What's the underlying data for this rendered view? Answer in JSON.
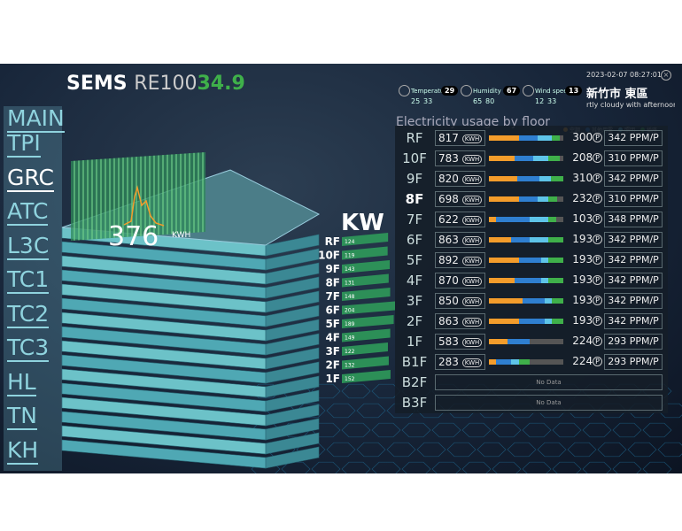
{
  "header": {
    "brand": "SEMS",
    "metric_label": "RE100",
    "metric_value": "34.9"
  },
  "weather": [
    {
      "label": "Temperature",
      "value": 29,
      "low": 25,
      "high": 33
    },
    {
      "label": "Humidity",
      "value": 67,
      "low": 65,
      "high": 80
    },
    {
      "label": "Wind speed",
      "value": 13,
      "low": 12,
      "high": 33
    }
  ],
  "datetime": "2023-02-07 08:27:01",
  "location": "新竹市 東區",
  "forecast": "rtly cloudy with afternoon oc",
  "nav": {
    "items": [
      "MAIN",
      "TPI",
      "GRC",
      "ATC",
      "L3C",
      "TC1",
      "TC2",
      "TC3",
      "HL",
      "TN",
      "KH"
    ],
    "active": 2
  },
  "building": {
    "total": 376,
    "total_unit": "KWH",
    "floor_unit": "KW",
    "floors": [
      {
        "floor": "RF",
        "value": 124
      },
      {
        "floor": "10F",
        "value": 119
      },
      {
        "floor": "9F",
        "value": 143
      },
      {
        "floor": "8F",
        "value": 131
      },
      {
        "floor": "7F",
        "value": 148
      },
      {
        "floor": "6F",
        "value": 204
      },
      {
        "floor": "5F",
        "value": 189
      },
      {
        "floor": "4F",
        "value": 149
      },
      {
        "floor": "3F",
        "value": 122
      },
      {
        "floor": "2F",
        "value": 132
      },
      {
        "floor": "1F",
        "value": 152
      }
    ]
  },
  "panel": {
    "title": "Electricity usage by floor",
    "legend": [
      {
        "name": "空調",
        "color": "#f39c2b"
      },
      {
        "name": "其他用電",
        "color": "#2f7fd0"
      },
      {
        "name": "照明",
        "color": "#5ec4e8"
      },
      {
        "name": "插座",
        "color": "#3fb04a"
      }
    ],
    "kwh_unit": "KWH",
    "people_unit": "P",
    "active_row": 3,
    "rows": [
      {
        "floor": "RF",
        "kwh": 817,
        "people": 300,
        "ppm": "342 PPM/P",
        "segments": [
          40,
          25,
          20,
          10
        ]
      },
      {
        "floor": "10F",
        "kwh": 783,
        "people": 208,
        "ppm": "310 PPM/P",
        "segments": [
          35,
          25,
          20,
          15
        ]
      },
      {
        "floor": "9F",
        "kwh": 820,
        "people": 310,
        "ppm": "342 PPM/P",
        "segments": [
          38,
          30,
          15,
          17
        ]
      },
      {
        "floor": "8F",
        "kwh": 698,
        "people": 232,
        "ppm": "310 PPM/P",
        "segments": [
          40,
          25,
          15,
          12
        ]
      },
      {
        "floor": "7F",
        "kwh": 622,
        "people": 103,
        "ppm": "348 PPM/P",
        "segments": [
          10,
          45,
          25,
          10
        ]
      },
      {
        "floor": "6F",
        "kwh": 863,
        "people": 193,
        "ppm": "342 PPM/P",
        "segments": [
          30,
          25,
          25,
          20
        ]
      },
      {
        "floor": "5F",
        "kwh": 892,
        "people": 193,
        "ppm": "342 PPM/P",
        "segments": [
          40,
          30,
          10,
          20
        ]
      },
      {
        "floor": "4F",
        "kwh": 870,
        "people": 193,
        "ppm": "342 PPM/P",
        "segments": [
          35,
          35,
          10,
          20
        ]
      },
      {
        "floor": "3F",
        "kwh": 850,
        "people": 193,
        "ppm": "342 PPM/P",
        "segments": [
          45,
          30,
          10,
          15
        ]
      },
      {
        "floor": "2F",
        "kwh": 863,
        "people": 193,
        "ppm": "342 PPM/P",
        "segments": [
          40,
          35,
          10,
          15
        ]
      },
      {
        "floor": "1F",
        "kwh": 583,
        "people": 224,
        "ppm": "293 PPM/P",
        "segments": [
          25,
          30,
          0,
          0
        ]
      },
      {
        "floor": "B1F",
        "kwh": 283,
        "people": 224,
        "ppm": "293 PPM/P",
        "segments": [
          10,
          20,
          10,
          15
        ]
      },
      {
        "floor": "B2F",
        "no_data": "No Data"
      },
      {
        "floor": "B3F",
        "no_data": "No Data"
      }
    ]
  }
}
